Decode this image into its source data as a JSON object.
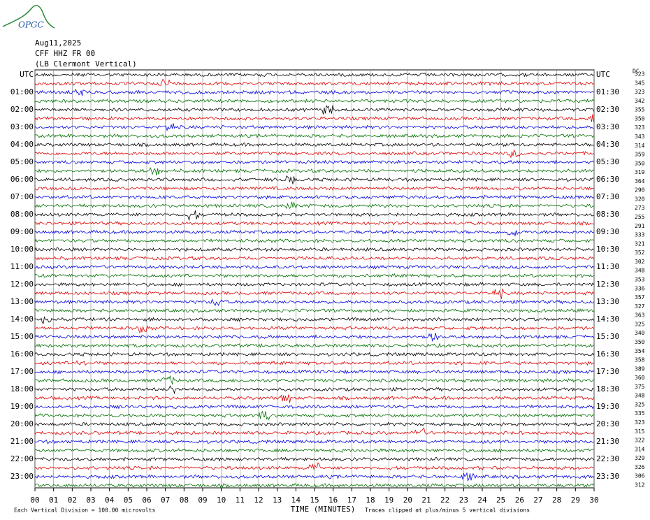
{
  "header": {
    "logo": "OPGC",
    "date": "Aug11,2025",
    "station": "CFF HHZ FR 00",
    "location": "(LB Clermont Vertical)"
  },
  "left_labels": [
    "UTC",
    "01:00",
    "02:00",
    "03:00",
    "04:00",
    "05:00",
    "06:00",
    "07:00",
    "08:00",
    "09:00",
    "10:00",
    "11:00",
    "12:00",
    "13:00",
    "14:00",
    "15:00",
    "16:00",
    "17:00",
    "18:00",
    "19:00",
    "20:00",
    "21:00",
    "22:00",
    "23:00"
  ],
  "right_labels": [
    "UTC",
    "01:30",
    "02:30",
    "03:30",
    "04:30",
    "05:30",
    "06:30",
    "07:30",
    "08:30",
    "09:30",
    "10:30",
    "11:30",
    "12:30",
    "13:30",
    "14:30",
    "15:30",
    "16:30",
    "17:30",
    "18:30",
    "19:30",
    "20:30",
    "21:30",
    "22:30",
    "23:30"
  ],
  "dc_header": "DC",
  "dc_values": [
    "323",
    "345",
    "323",
    "342",
    "355",
    "350",
    "323",
    "343",
    "314",
    "359",
    "350",
    "319",
    "364",
    "290",
    "320",
    "273",
    "255",
    "291",
    "333",
    "321",
    "352",
    "302",
    "348",
    "353",
    "336",
    "357",
    "327",
    "363",
    "325",
    "340",
    "350",
    "354",
    "358",
    "389",
    "360",
    "375",
    "348",
    "325",
    "335",
    "323",
    "315",
    "322",
    "314",
    "329",
    "326",
    "306",
    "312"
  ],
  "x_ticks": [
    "00",
    "01",
    "02",
    "03",
    "04",
    "05",
    "06",
    "07",
    "08",
    "09",
    "10",
    "11",
    "12",
    "13",
    "14",
    "15",
    "16",
    "17",
    "18",
    "19",
    "20",
    "21",
    "22",
    "23",
    "24",
    "25",
    "26",
    "27",
    "28",
    "29",
    "30"
  ],
  "footer": {
    "left": "Each Vertical Division =  100.00 microvolts",
    "center": "TIME (MINUTES)",
    "right": "Traces clipped at plus/minus 5 vertical divisions"
  }
}
